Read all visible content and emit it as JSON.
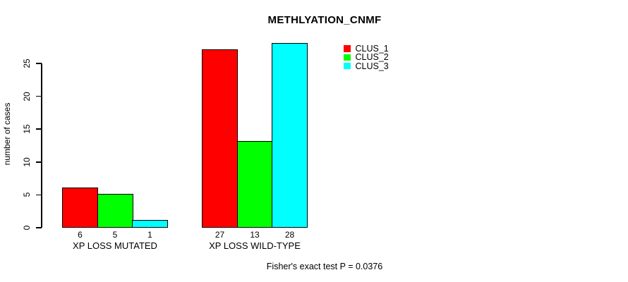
{
  "chart_data": {
    "type": "bar",
    "title": "METHLYATION_CNMF",
    "ylabel": "number of cases",
    "xlabel": "",
    "ylim": [
      0,
      28
    ],
    "yticks": [
      0,
      5,
      10,
      15,
      20,
      25
    ],
    "grid": false,
    "legend_position": "top-right",
    "categories": [
      "XP LOSS MUTATED",
      "XP LOSS WILD-TYPE"
    ],
    "series": [
      {
        "name": "CLUS_1",
        "color": "#FF0000",
        "values": [
          6,
          27
        ]
      },
      {
        "name": "CLUS_2",
        "color": "#00FF00",
        "values": [
          5,
          13
        ]
      },
      {
        "name": "CLUS_3",
        "color": "#00FFFF",
        "values": [
          1,
          28
        ]
      }
    ],
    "show_bar_values": true,
    "bar_border_color": "#000000",
    "annotation": "Fisher's exact test P = 0.0376"
  }
}
